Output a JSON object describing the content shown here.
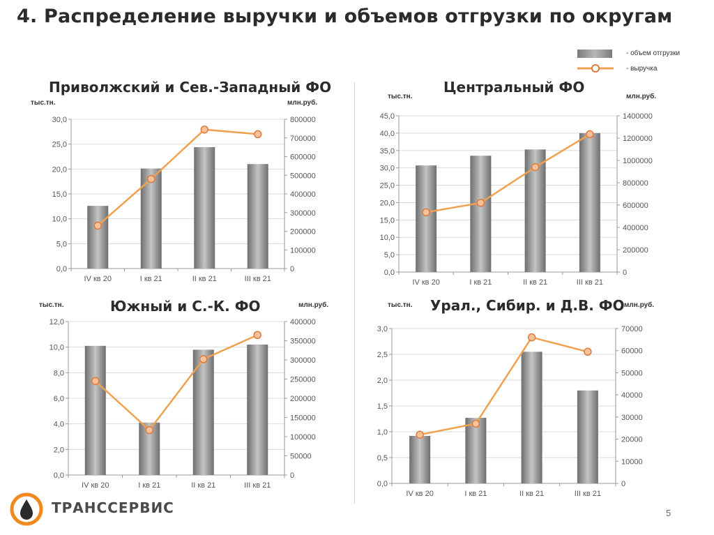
{
  "page": {
    "title": "4. Распределение выручки и объемов отгрузки по округам",
    "page_number": "5",
    "logo_text": "ТРАНССЕРВИС"
  },
  "legend": {
    "volume_label": "- объем отгрузки",
    "revenue_label": "- выручка"
  },
  "colors": {
    "bar_dark": "#6e6e6e",
    "bar_light": "#c4c4c4",
    "line": "#f0a150",
    "marker_fill": "#f6c29b",
    "marker_stroke": "#e07a3a",
    "grid": "#d9d9d9",
    "logo_orange": "#f08a1e"
  },
  "chart_data": [
    {
      "id": "volga-nw",
      "type": "bar",
      "title": "Приволжский и Сев.-Западный ФО",
      "ylabel": "тыс.тн.",
      "y2label": "млн.руб.",
      "categories": [
        "IV кв 20",
        "I кв 21",
        "II кв 21",
        "III кв 21"
      ],
      "ylim": [
        0,
        30
      ],
      "y2lim": [
        0,
        800000
      ],
      "y_ticks": [
        "0,0",
        "5,0",
        "10,0",
        "15,0",
        "20,0",
        "25,0",
        "30,0"
      ],
      "y2_ticks": [
        "0",
        "100000",
        "200000",
        "300000",
        "400000",
        "500000",
        "600000",
        "700000",
        "800000"
      ],
      "series": [
        {
          "name": "объем отгрузки",
          "type": "bar",
          "axis": "left",
          "values": [
            12.6,
            20.1,
            24.4,
            21.0
          ]
        },
        {
          "name": "выручка",
          "type": "line",
          "axis": "right",
          "values": [
            230000,
            480000,
            745000,
            720000
          ]
        }
      ]
    },
    {
      "id": "central",
      "type": "bar",
      "title": "Центральный ФО",
      "ylabel": "тыс.тн.",
      "y2label": "млн.руб.",
      "categories": [
        "IV кв 20",
        "I кв 21",
        "II кв 21",
        "III кв 21"
      ],
      "ylim": [
        0,
        45
      ],
      "y2lim": [
        0,
        1400000
      ],
      "y_ticks": [
        "0,0",
        "5,0",
        "10,0",
        "15,0",
        "20,0",
        "25,0",
        "30,0",
        "35,0",
        "40,0",
        "45,0"
      ],
      "y2_ticks": [
        "0",
        "200000",
        "400000",
        "600000",
        "800000",
        "1000000",
        "1200000",
        "1400000"
      ],
      "series": [
        {
          "name": "объем отгрузки",
          "type": "bar",
          "axis": "left",
          "values": [
            30.7,
            33.5,
            35.3,
            40.0
          ]
        },
        {
          "name": "выручка",
          "type": "line",
          "axis": "right",
          "values": [
            535000,
            620000,
            940000,
            1235000
          ]
        }
      ]
    },
    {
      "id": "south",
      "type": "bar",
      "title": "Южный и С.-К. ФО",
      "ylabel": "тыс.тн.",
      "y2label": "млн.руб.",
      "categories": [
        "IV кв 20",
        "I кв 21",
        "II кв 21",
        "III кв 21"
      ],
      "ylim": [
        0,
        12
      ],
      "y2lim": [
        0,
        400000
      ],
      "y_ticks": [
        "0,0",
        "2,0",
        "4,0",
        "6,0",
        "8,0",
        "10,0",
        "12,0"
      ],
      "y2_ticks": [
        "0",
        "50000",
        "100000",
        "150000",
        "200000",
        "250000",
        "300000",
        "350000",
        "400000"
      ],
      "series": [
        {
          "name": "объем отгрузки",
          "type": "bar",
          "axis": "left",
          "values": [
            10.1,
            4.1,
            9.8,
            10.2
          ]
        },
        {
          "name": "выручка",
          "type": "line",
          "axis": "right",
          "values": [
            245000,
            117000,
            302000,
            365000
          ]
        }
      ]
    },
    {
      "id": "ural-sib-fe",
      "type": "bar",
      "title": "Урал., Сибир. и Д.В. ФО",
      "ylabel": "тыс.тн.",
      "y2label": "млн.руб.",
      "categories": [
        "IV кв 20",
        "I кв 21",
        "II кв 21",
        "III кв 21"
      ],
      "ylim": [
        0,
        3
      ],
      "y2lim": [
        0,
        70000
      ],
      "y_ticks": [
        "0,0",
        "0,5",
        "1,0",
        "1,5",
        "2,0",
        "2,5",
        "3,0"
      ],
      "y2_ticks": [
        "0",
        "10000",
        "20000",
        "30000",
        "40000",
        "50000",
        "60000",
        "70000"
      ],
      "series": [
        {
          "name": "объем отгрузки",
          "type": "bar",
          "axis": "left",
          "values": [
            0.92,
            1.27,
            2.55,
            1.8
          ]
        },
        {
          "name": "выручка",
          "type": "line",
          "axis": "right",
          "values": [
            22000,
            27000,
            66000,
            59500
          ]
        }
      ]
    }
  ]
}
